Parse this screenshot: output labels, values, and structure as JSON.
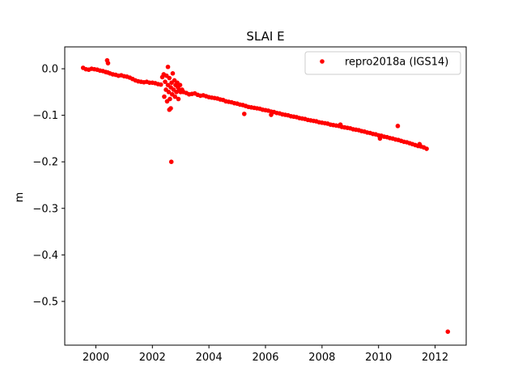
{
  "chart_data": {
    "type": "scatter",
    "title": "SLAI E",
    "xlabel": "",
    "ylabel": "m",
    "xlim": [
      1998.9,
      2013.1
    ],
    "ylim": [
      -0.594,
      0.047
    ],
    "xticks": [
      2000,
      2002,
      2004,
      2006,
      2008,
      2010,
      2012
    ],
    "xtick_labels": [
      "2000",
      "2002",
      "2004",
      "2006",
      "2008",
      "2010",
      "2012"
    ],
    "yticks": [
      0.0,
      -0.1,
      -0.2,
      -0.3,
      -0.4,
      -0.5
    ],
    "ytick_labels": [
      "0.0",
      "−0.1",
      "−0.2",
      "−0.3",
      "−0.4",
      "−0.5"
    ],
    "grid": false,
    "legend_position": "top-right",
    "series": [
      {
        "name": "repro2018a (IGS14)",
        "color": "#ff0000",
        "marker": "circle",
        "x": [
          1999.55,
          1999.65,
          1999.75,
          1999.85,
          1999.95,
          2000.05,
          2000.15,
          2000.25,
          2000.35,
          2000.42,
          2000.5,
          2000.6,
          2000.7,
          2000.8,
          2000.9,
          2001.0,
          2001.1,
          2001.2,
          2001.3,
          2001.4,
          2001.5,
          2001.6,
          2001.7,
          2001.8,
          2001.9,
          2002.0,
          2002.1,
          2002.2,
          2002.3,
          2002.35,
          2002.4,
          2002.42,
          2002.45,
          2002.48,
          2002.5,
          2002.52,
          2002.55,
          2002.58,
          2002.6,
          2002.62,
          2002.65,
          2002.68,
          2002.7,
          2002.72,
          2002.75,
          2002.78,
          2002.8,
          2002.82,
          2002.85,
          2002.88,
          2002.9,
          2002.92,
          2002.95,
          2002.98,
          2003.0,
          2003.05,
          2003.1,
          2003.2,
          2003.3,
          2003.4,
          2003.5,
          2003.6,
          2003.7,
          2003.8,
          2003.9,
          2004.0,
          2004.1,
          2004.2,
          2004.3,
          2004.4,
          2004.5,
          2004.6,
          2004.7,
          2004.8,
          2004.9,
          2005.0,
          2005.1,
          2005.2,
          2005.3,
          2005.4,
          2005.5,
          2005.6,
          2005.7,
          2005.8,
          2005.9,
          2006.0,
          2006.1,
          2006.2,
          2006.3,
          2006.4,
          2006.5,
          2006.6,
          2006.7,
          2006.8,
          2006.9,
          2007.0,
          2007.1,
          2007.2,
          2007.3,
          2007.4,
          2007.5,
          2007.6,
          2007.7,
          2007.8,
          2007.9,
          2008.0,
          2008.1,
          2008.2,
          2008.3,
          2008.4,
          2008.5,
          2008.6,
          2008.7,
          2008.8,
          2008.9,
          2009.0,
          2009.1,
          2009.2,
          2009.3,
          2009.4,
          2009.5,
          2009.6,
          2009.7,
          2009.8,
          2009.9,
          2010.0,
          2010.1,
          2010.2,
          2010.3,
          2010.4,
          2010.5,
          2010.6,
          2010.7,
          2010.8,
          2010.9,
          2011.0,
          2011.1,
          2011.2,
          2011.3,
          2011.4,
          2011.5,
          2011.6,
          2011.7,
          2000.4,
          2000.43,
          2002.55,
          2002.6,
          2002.65,
          2002.67,
          2005.25,
          2006.2,
          2008.65,
          2010.68,
          2010.05,
          2011.45,
          2012.45
        ],
        "y": [
          0.002,
          -0.001,
          -0.002,
          0.0,
          -0.001,
          -0.002,
          -0.004,
          -0.005,
          -0.007,
          -0.008,
          -0.01,
          -0.012,
          -0.013,
          -0.015,
          -0.014,
          -0.016,
          -0.017,
          -0.019,
          -0.022,
          -0.025,
          -0.027,
          -0.028,
          -0.029,
          -0.028,
          -0.03,
          -0.03,
          -0.031,
          -0.033,
          -0.034,
          -0.018,
          -0.012,
          -0.06,
          -0.028,
          -0.045,
          -0.015,
          -0.07,
          -0.035,
          -0.05,
          -0.02,
          -0.065,
          -0.04,
          -0.03,
          -0.055,
          -0.01,
          -0.045,
          -0.025,
          -0.06,
          -0.035,
          -0.05,
          -0.03,
          -0.04,
          -0.065,
          -0.045,
          -0.035,
          -0.05,
          -0.045,
          -0.05,
          -0.052,
          -0.055,
          -0.054,
          -0.053,
          -0.056,
          -0.058,
          -0.057,
          -0.059,
          -0.061,
          -0.062,
          -0.063,
          -0.064,
          -0.066,
          -0.067,
          -0.07,
          -0.071,
          -0.072,
          -0.074,
          -0.075,
          -0.077,
          -0.078,
          -0.08,
          -0.082,
          -0.083,
          -0.084,
          -0.085,
          -0.086,
          -0.088,
          -0.089,
          -0.09,
          -0.092,
          -0.093,
          -0.095,
          -0.096,
          -0.098,
          -0.099,
          -0.1,
          -0.102,
          -0.103,
          -0.104,
          -0.106,
          -0.107,
          -0.108,
          -0.11,
          -0.111,
          -0.112,
          -0.113,
          -0.115,
          -0.116,
          -0.117,
          -0.118,
          -0.12,
          -0.121,
          -0.122,
          -0.123,
          -0.125,
          -0.126,
          -0.127,
          -0.128,
          -0.13,
          -0.131,
          -0.132,
          -0.134,
          -0.135,
          -0.137,
          -0.138,
          -0.14,
          -0.141,
          -0.143,
          -0.144,
          -0.146,
          -0.147,
          -0.149,
          -0.15,
          -0.152,
          -0.153,
          -0.155,
          -0.157,
          -0.158,
          -0.16,
          -0.162,
          -0.164,
          -0.166,
          -0.167,
          -0.169,
          -0.172,
          0.018,
          0.012,
          0.004,
          -0.088,
          -0.085,
          -0.2,
          -0.097,
          -0.099,
          -0.12,
          -0.123,
          -0.15,
          -0.162,
          -0.565
        ]
      }
    ]
  }
}
